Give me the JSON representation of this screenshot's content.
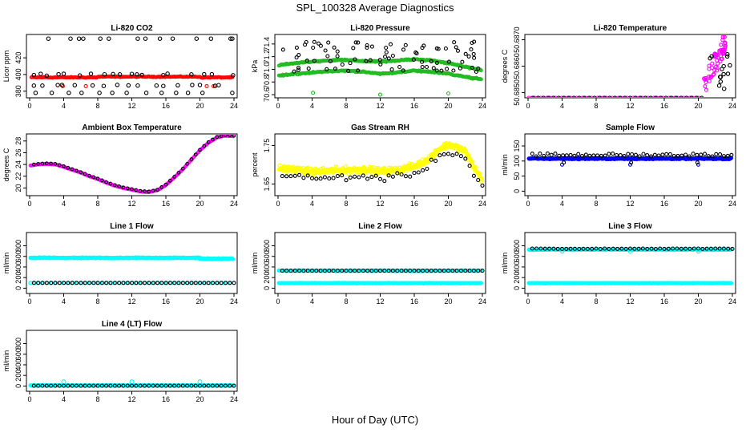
{
  "page": {
    "title": "SPL_100328  Average Diagnostics",
    "xlabel": "Hour of Day (UTC)"
  },
  "colors": {
    "black": "#000000",
    "red": "#ff0000",
    "green": "#22bb22",
    "magenta": "#ff00ff",
    "yellow": "#ffff00",
    "blue": "#0000ff",
    "cyan": "#00ffff"
  },
  "chart_data": [
    {
      "type": "scatter",
      "title": "Li-820 CO2",
      "ylabel": "Licor ppm",
      "xlim": [
        0,
        24
      ],
      "ylim": [
        372,
        448
      ],
      "xticks": [
        "0",
        "4",
        "8",
        "12",
        "16",
        "20",
        "24"
      ],
      "yticks": [
        380,
        400,
        420
      ],
      "grid": false,
      "series": [
        {
          "color": "red",
          "values": "continuous band ~395-398 ppm across 0-24 h, a few points near 386 ppm"
        },
        {
          "color": "black",
          "values": "5-minute averages scattered at ~378, ~386, ~398-401 and ~443 ppm"
        }
      ]
    },
    {
      "type": "scatter",
      "title": "Li-820 Pressure",
      "ylabel": "kPa",
      "xlim": [
        0,
        24
      ],
      "ylim": [
        70.55,
        71.55
      ],
      "xticks": [
        "0",
        "4",
        "8",
        "12",
        "16",
        "20",
        "24"
      ],
      "yticks": [
        "70.6",
        "70.8",
        "71.0",
        "71.2",
        "71.4"
      ],
      "grid": false,
      "series": [
        {
          "color": "green",
          "values": "two bands: upper ~71.0-71.2 kPa, lower ~70.8-71.0 kPa, both falling after 20 h"
        },
        {
          "color": "black",
          "values": "points scattered between ~70.9 and ~71.45 kPa"
        }
      ]
    },
    {
      "type": "scatter",
      "title": "Li-820 Temperature",
      "ylabel": "degrees C",
      "xlim": [
        0,
        24
      ],
      "ylim": [
        50.6848,
        50.6872
      ],
      "xticks": [
        "0",
        "4",
        "8",
        "12",
        "16",
        "20",
        "24"
      ],
      "yticks": [
        "50.6850",
        "50.6860",
        "50.6870"
      ],
      "grid": false,
      "series": [
        {
          "color": "magenta",
          "values": "flat at 50.6848 until ~20.5 h, then rising to ~50.6871 by 23 h"
        },
        {
          "color": "black",
          "values": "flat at 50.6848 until ~21 h, then up to ~50.6866"
        }
      ]
    },
    {
      "type": "scatter",
      "title": "Ambient Box Temperature",
      "ylabel": "degrees C",
      "xlim": [
        0,
        24
      ],
      "ylim": [
        18.7,
        29.2
      ],
      "xticks": [
        "0",
        "4",
        "8",
        "12",
        "16",
        "20",
        "24"
      ],
      "yticks": [
        20,
        22,
        24,
        26,
        28
      ],
      "grid": false,
      "series": [
        {
          "color": "magenta",
          "x": [
            0,
            1,
            2,
            3,
            4,
            5,
            6,
            7,
            8,
            9,
            10,
            11,
            12,
            13,
            14,
            15,
            16,
            17,
            18,
            19,
            20,
            21,
            22,
            23,
            24
          ],
          "values": [
            23.8,
            24.0,
            24.1,
            24.0,
            23.6,
            23.1,
            22.6,
            22.0,
            21.5,
            20.9,
            20.4,
            20.0,
            19.7,
            19.4,
            19.3,
            19.6,
            20.5,
            21.8,
            23.2,
            24.8,
            26.4,
            27.7,
            28.6,
            28.9,
            28.8
          ]
        },
        {
          "color": "black",
          "values": "5-minute averages following the same curve from 0.5 h to 24 h"
        }
      ]
    },
    {
      "type": "scatter",
      "title": "Gas Stream RH",
      "ylabel": "percent",
      "xlim": [
        0,
        24
      ],
      "ylim": [
        1.62,
        1.78
      ],
      "xticks": [
        "0",
        "4",
        "8",
        "12",
        "16",
        "20",
        "24"
      ],
      "yticks": [
        "1.65",
        "1.75"
      ],
      "grid": false,
      "series": [
        {
          "color": "yellow",
          "x": [
            0,
            2,
            4,
            6,
            8,
            10,
            12,
            14,
            16,
            17,
            18,
            19,
            20,
            21,
            22,
            23,
            24
          ],
          "values": [
            1.69,
            1.688,
            1.682,
            1.684,
            1.686,
            1.688,
            1.683,
            1.686,
            1.696,
            1.706,
            1.722,
            1.742,
            1.752,
            1.745,
            1.735,
            1.695,
            1.66
          ]
        },
        {
          "color": "black",
          "values": "points ~1.64-1.68 %, rising to ~1.73 % near 18-21 h, falling to ~1.63 % at 24 h"
        }
      ]
    },
    {
      "type": "scatter",
      "title": "Sample Flow",
      "ylabel": "ml/min",
      "xlim": [
        0,
        24
      ],
      "ylim": [
        -15,
        190
      ],
      "xticks": [
        "0",
        "4",
        "8",
        "12",
        "16",
        "20",
        "24"
      ],
      "yticks": [
        0,
        50,
        100,
        150
      ],
      "grid": false,
      "series": [
        {
          "color": "blue",
          "values": "band ~105-112 ml/min across 0-24 h"
        },
        {
          "color": "black",
          "values": "points ~112-125 ml/min, a few down to ~90 ml/min"
        }
      ]
    },
    {
      "type": "scatter",
      "title": "Line 1 Flow",
      "ylabel": "ml/min",
      "xlim": [
        0,
        24
      ],
      "ylim": [
        -100,
        1050
      ],
      "xticks": [
        "0",
        "4",
        "8",
        "12",
        "16",
        "20",
        "24"
      ],
      "yticks": [
        0,
        200,
        400,
        600,
        800
      ],
      "grid": false,
      "series": [
        {
          "color": "cyan",
          "values": "band ~560-580 ml/min, slightly lower after 20 h; second band ~100 ml/min"
        },
        {
          "color": "black",
          "values": "points at ~100 ml/min across 0.5-24 h"
        }
      ]
    },
    {
      "type": "scatter",
      "title": "Line 2 Flow",
      "ylabel": "ml/min",
      "xlim": [
        0,
        24
      ],
      "ylim": [
        -100,
        1050
      ],
      "xticks": [
        "0",
        "4",
        "8",
        "12",
        "16",
        "20",
        "24"
      ],
      "yticks": [
        0,
        200,
        400,
        600,
        800
      ],
      "grid": false,
      "series": [
        {
          "color": "cyan",
          "values": "bands at ~330 ml/min and ~100 ml/min"
        },
        {
          "color": "black",
          "values": "points at ~330 ml/min across 0.5-24 h"
        }
      ]
    },
    {
      "type": "scatter",
      "title": "Line 3 Flow",
      "ylabel": "ml/min",
      "xlim": [
        0,
        24
      ],
      "ylim": [
        -100,
        1050
      ],
      "xticks": [
        "0",
        "4",
        "8",
        "12",
        "16",
        "20",
        "24"
      ],
      "yticks": [
        0,
        200,
        400,
        600,
        800
      ],
      "grid": false,
      "series": [
        {
          "color": "cyan",
          "values": "bands at ~730 ml/min and ~95 ml/min"
        },
        {
          "color": "black",
          "values": "points at ~740 ml/min across 0.5-24 h"
        }
      ]
    },
    {
      "type": "scatter",
      "title": "Line 4 (LT) Flow",
      "ylabel": "ml/min",
      "xlim": [
        0,
        24
      ],
      "ylim": [
        -100,
        1050
      ],
      "xticks": [
        "0",
        "4",
        "8",
        "12",
        "16",
        "20",
        "24"
      ],
      "yticks": [
        0,
        200,
        400,
        600,
        800
      ],
      "grid": false,
      "series": [
        {
          "color": "cyan",
          "values": "band at ~10 ml/min with spikes ~80 ml/min at 4, 12 and 20 h"
        },
        {
          "color": "black",
          "values": "points at ~5 ml/min across 0.5-24 h"
        }
      ]
    }
  ]
}
